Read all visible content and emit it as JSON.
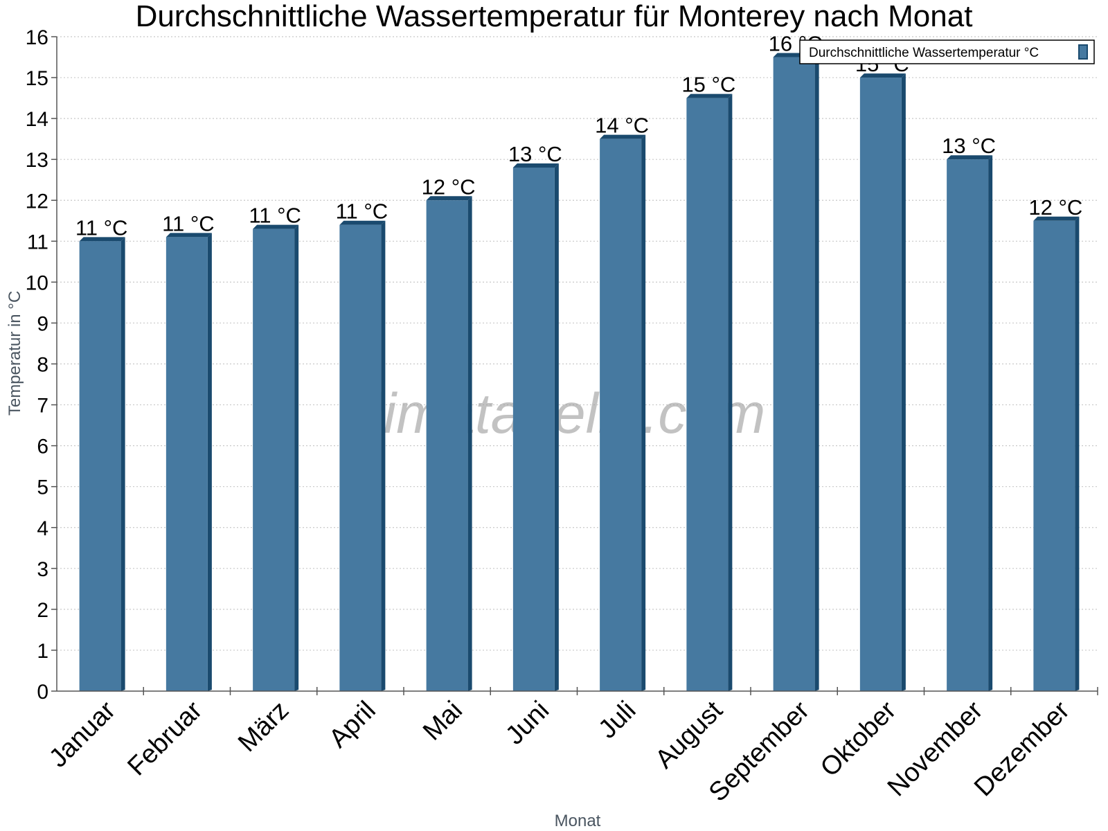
{
  "watermark": "klimatabelle.com",
  "colors": {
    "bar_face": "#4679a0",
    "bar_dark": "#1a4a6e",
    "grid": "#c8c8c8",
    "axis": "#555555"
  },
  "chart_data": {
    "type": "bar",
    "title": "Durchschnittliche Wassertemperatur für Monterey nach Monat",
    "xlabel": "Monat",
    "ylabel": "Temperatur in °C",
    "ylim": [
      0,
      16
    ],
    "yticks": [
      "0",
      "1",
      "2",
      "3",
      "4",
      "5",
      "6",
      "7",
      "8",
      "9",
      "10",
      "11",
      "12",
      "13",
      "14",
      "15",
      "16"
    ],
    "grid": true,
    "legend_position": "top-right",
    "categories": [
      "Januar",
      "Februar",
      "März",
      "April",
      "Mai",
      "Juni",
      "Juli",
      "August",
      "September",
      "Oktober",
      "November",
      "Dezember"
    ],
    "series": [
      {
        "name": "Durchschnittliche Wassertemperatur °C",
        "values": [
          11.0,
          11.1,
          11.3,
          11.4,
          12.0,
          12.8,
          13.5,
          14.5,
          15.5,
          15.0,
          13.0,
          11.5
        ],
        "labels": [
          "11 °C",
          "11 °C",
          "11 °C",
          "11 °C",
          "12 °C",
          "13 °C",
          "14 °C",
          "15 °C",
          "16 °C",
          "15 °C",
          "13 °C",
          "12 °C"
        ]
      }
    ]
  }
}
